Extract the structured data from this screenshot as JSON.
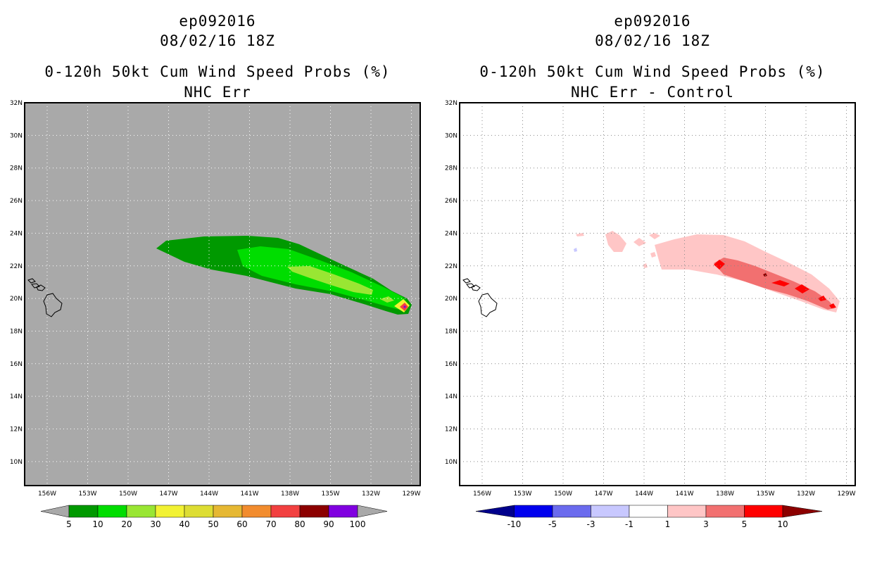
{
  "left": {
    "title_line1": "ep092016",
    "title_line2": "08/02/16 18Z",
    "title_line3": "0-120h 50kt Cum Wind Speed Probs (%)",
    "title_line4": "NHC Err",
    "background_color": "#a9a9a9",
    "colorbar": {
      "labels": [
        "5",
        "10",
        "20",
        "30",
        "40",
        "50",
        "60",
        "70",
        "80",
        "90",
        "100"
      ],
      "colors": [
        "#009900",
        "#00dd00",
        "#99e633",
        "#f2f233",
        "#dddd33",
        "#e6b833",
        "#f28c2e",
        "#f24040",
        "#8c0000",
        "#8000e0"
      ]
    }
  },
  "right": {
    "title_line1": "ep092016",
    "title_line2": "08/02/16 18Z",
    "title_line3": "0-120h 50kt Cum Wind Speed Probs (%)",
    "title_line4": "NHC Err - Control",
    "background_color": "#ffffff",
    "colorbar": {
      "labels": [
        "-10",
        "-5",
        "-3",
        "-1",
        "1",
        "3",
        "5",
        "10"
      ],
      "colors": [
        "#00008c",
        "#0000ee",
        "#6b6bee",
        "#c8c8ff",
        "#ffffff",
        "#ffc6c6",
        "#f27070",
        "#ff0000",
        "#8c0000"
      ]
    }
  },
  "axes": {
    "lat_labels": [
      "32N",
      "30N",
      "28N",
      "26N",
      "24N",
      "22N",
      "20N",
      "18N",
      "16N",
      "14N",
      "12N",
      "10N"
    ],
    "lon_labels": [
      "156W",
      "153W",
      "150W",
      "147W",
      "144W",
      "141W",
      "138W",
      "135W",
      "132W",
      "129W"
    ]
  }
}
